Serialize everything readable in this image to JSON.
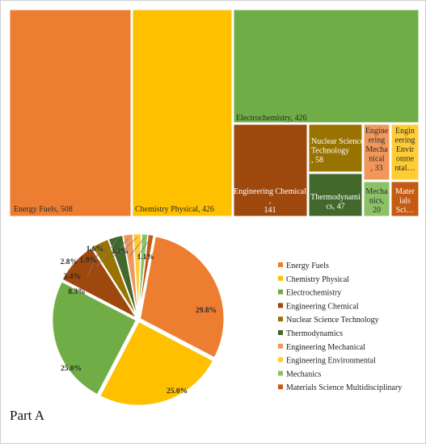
{
  "chart_data": [
    {
      "type": "treemap",
      "cells": [
        {
          "name": "Energy Fuels",
          "value": 508,
          "label": "Energy Fuels, 508",
          "color": "#ED7D31",
          "text": "#2a2a2a"
        },
        {
          "name": "Chemistry Physical",
          "value": 426,
          "label": "Chemistry Physical, 426",
          "color": "#FFC000",
          "text": "#2a2a2a"
        },
        {
          "name": "Electrochemistry",
          "value": 426,
          "label": "Electrochemistry, 426",
          "color": "#70AD47",
          "text": "#2a2a2a"
        },
        {
          "name": "Engineering Chemical",
          "value": 141,
          "label": "Engineering Chemical , 141",
          "color": "#9E480E",
          "text": "#ffffff"
        },
        {
          "name": "Nuclear Science Technology",
          "value": 58,
          "label": "Nuclear Science Technology , 58",
          "color": "#997300",
          "text": "#ffffff"
        },
        {
          "name": "Thermodynamics",
          "value": 47,
          "label": "Thermodynamics, 47",
          "color": "#43682B",
          "text": "#ffffff"
        },
        {
          "name": "Engineering Mechanical",
          "value": 33,
          "label": "Engineering Mechanical , 33",
          "color": "#F1975A",
          "text": "#2a2a2a"
        },
        {
          "name": "Engineering Environmental",
          "value": null,
          "label": "Engineering Environmental…",
          "color": "#FFCD33",
          "text": "#2a2a2a"
        },
        {
          "name": "Mechanics",
          "value": 20,
          "label": "Mechanics, 20",
          "color": "#8CC168",
          "text": "#2a2a2a"
        },
        {
          "name": "Materials Science Multidisciplinary",
          "value": null,
          "label": "Materials Sci…",
          "color": "#C55A11",
          "text": "#ffffff"
        }
      ]
    },
    {
      "type": "pie",
      "title": "Part A",
      "legend_position": "right",
      "slices": [
        {
          "name": "Energy Fuels",
          "percent": 29.8,
          "label": "29.8%",
          "color": "#ED7D31"
        },
        {
          "name": "Chemistry Physical",
          "percent": 25.0,
          "label": "25.0%",
          "color": "#FFC000"
        },
        {
          "name": "Electrochemistry",
          "percent": 25.0,
          "label": "25.0%",
          "color": "#70AD47"
        },
        {
          "name": "Engineering Chemical",
          "percent": 8.3,
          "label": "8.3%",
          "color": "#9E480E"
        },
        {
          "name": "Nuclear Science Technology",
          "percent": 3.4,
          "label": "3.4%",
          "color": "#997300"
        },
        {
          "name": "Thermodynamics",
          "percent": 2.8,
          "label": "2.8%",
          "color": "#43682B"
        },
        {
          "name": "Engineering Mechanical",
          "percent": 1.9,
          "label": "1.9%",
          "color": "#F1975A"
        },
        {
          "name": "Engineering Environmental",
          "percent": 1.6,
          "label": "1.6%",
          "color": "#FFCD33"
        },
        {
          "name": "Mechanics",
          "percent": 1.2,
          "label": "1.2%",
          "color": "#8CC168"
        },
        {
          "name": "Materials Science Multidisciplinary",
          "percent": 1.1,
          "label": "1.1%",
          "color": "#C55A11"
        }
      ]
    }
  ]
}
